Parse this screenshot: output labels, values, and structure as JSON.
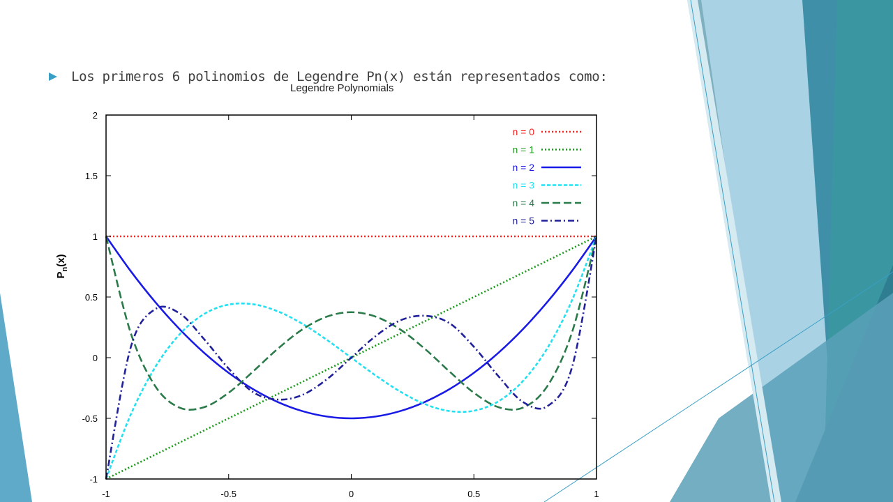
{
  "slide": {
    "bullet_text": "Los primeros 6 polinomios de Legendre Pn(x) están representados como:",
    "accent_colors": [
      "#3a9fc4",
      "#2e8a94",
      "#7fb8cc",
      "#a9d3e4"
    ]
  },
  "chart_data": {
    "type": "line",
    "title": "Legendre Polynomials",
    "ylabel_base": "P",
    "ylabel_sub": "n",
    "ylabel_rest": "(x)",
    "xlabel": "",
    "xlim": [
      -1,
      1
    ],
    "ylim": [
      -1,
      2
    ],
    "xticks": [
      -1,
      -0.5,
      0,
      0.5,
      1
    ],
    "xtick_labels": [
      "-1",
      "-0.5",
      "0",
      "0.5",
      "1"
    ],
    "yticks": [
      -1,
      -0.5,
      0,
      0.5,
      1,
      1.5,
      2
    ],
    "ytick_labels": [
      "-1",
      "-0.5",
      "0",
      "0.5",
      "1",
      "1.5",
      "2"
    ],
    "grid": false,
    "legend_position": "top-right",
    "x": [
      -1,
      -0.9,
      -0.8,
      -0.7,
      -0.6,
      -0.5,
      -0.4,
      -0.3,
      -0.2,
      -0.1,
      0,
      0.1,
      0.2,
      0.3,
      0.4,
      0.5,
      0.6,
      0.7,
      0.8,
      0.9,
      1
    ],
    "series": [
      {
        "name": "n = 0",
        "color": "#ff2020",
        "dash": "dotted",
        "values": [
          1,
          1,
          1,
          1,
          1,
          1,
          1,
          1,
          1,
          1,
          1,
          1,
          1,
          1,
          1,
          1,
          1,
          1,
          1,
          1,
          1
        ]
      },
      {
        "name": "n = 1",
        "color": "#1a9a1a",
        "dash": "dotted",
        "values": [
          -1,
          -0.9,
          -0.8,
          -0.7,
          -0.6,
          -0.5,
          -0.4,
          -0.3,
          -0.2,
          -0.1,
          0,
          0.1,
          0.2,
          0.3,
          0.4,
          0.5,
          0.6,
          0.7,
          0.8,
          0.9,
          1
        ]
      },
      {
        "name": "n = 2",
        "color": "#1a1ae6",
        "dash": "solid",
        "values": [
          1,
          0.715,
          0.46,
          0.235,
          0.04,
          -0.125,
          -0.26,
          -0.365,
          -0.44,
          -0.485,
          -0.5,
          -0.485,
          -0.44,
          -0.365,
          -0.26,
          -0.125,
          0.04,
          0.235,
          0.46,
          0.715,
          1
        ]
      },
      {
        "name": "n = 3",
        "color": "#22e0f0",
        "dash": "short-dash",
        "values": [
          -1,
          -0.4725,
          -0.08,
          0.1925,
          0.36,
          0.4375,
          0.44,
          0.3825,
          0.28,
          0.1475,
          0,
          -0.1475,
          -0.28,
          -0.3825,
          -0.44,
          -0.4375,
          -0.36,
          -0.1925,
          0.08,
          0.4725,
          1
        ]
      },
      {
        "name": "n = 4",
        "color": "#2a7a4a",
        "dash": "long-dash",
        "values": [
          1,
          0.2079,
          -0.233,
          -0.4121,
          -0.408,
          -0.2891,
          -0.113,
          0.0729,
          0.232,
          0.3379,
          0.375,
          0.3379,
          0.232,
          0.0729,
          -0.113,
          -0.2891,
          -0.408,
          -0.4121,
          -0.233,
          0.2079,
          1
        ]
      },
      {
        "name": "n = 5",
        "color": "#20209a",
        "dash": "dash-dot",
        "values": [
          -1,
          0.0806,
          0.3995,
          0.3651,
          0.1526,
          -0.0898,
          -0.2848,
          -0.3454,
          -0.3075,
          -0.1788,
          0,
          0.1788,
          0.3075,
          0.3454,
          0.2848,
          0.0898,
          -0.1526,
          -0.3651,
          -0.3995,
          -0.0806,
          1
        ]
      }
    ]
  }
}
